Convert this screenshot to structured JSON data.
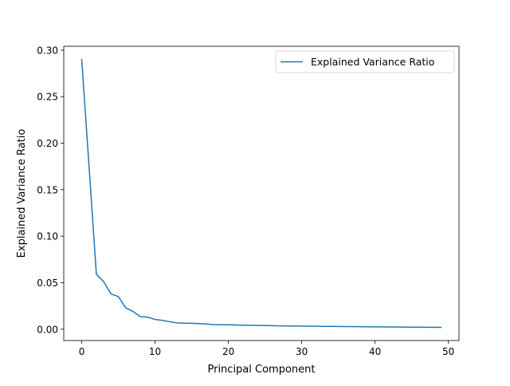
{
  "chart_data": {
    "type": "line",
    "xlabel": "Principal Component",
    "ylabel": "Explained Variance Ratio",
    "xlim": [
      -2.45,
      51.45
    ],
    "ylim": [
      -0.0122,
      0.3042
    ],
    "grid": false,
    "legend_position": "upper right",
    "series_color": "#1f77b4",
    "x_ticks": [
      0,
      10,
      20,
      30,
      40,
      50
    ],
    "x_tick_labels": [
      "0",
      "10",
      "20",
      "30",
      "40",
      "50"
    ],
    "y_ticks": [
      0.0,
      0.05,
      0.1,
      0.15,
      0.2,
      0.25,
      0.3
    ],
    "y_tick_labels": [
      "0.00",
      "0.05",
      "0.10",
      "0.15",
      "0.20",
      "0.25",
      "0.30"
    ],
    "series": [
      {
        "name": "Explained Variance Ratio",
        "x": [
          0,
          1,
          2,
          3,
          4,
          5,
          6,
          7,
          8,
          9,
          10,
          11,
          12,
          13,
          14,
          15,
          16,
          17,
          18,
          19,
          20,
          21,
          22,
          23,
          24,
          25,
          26,
          27,
          28,
          29,
          30,
          31,
          32,
          33,
          34,
          35,
          36,
          37,
          38,
          39,
          40,
          41,
          42,
          43,
          44,
          45,
          46,
          47,
          48,
          49
        ],
        "values": [
          0.29,
          0.175,
          0.059,
          0.051,
          0.038,
          0.035,
          0.023,
          0.019,
          0.0135,
          0.013,
          0.0105,
          0.0095,
          0.008,
          0.0068,
          0.0065,
          0.0063,
          0.006,
          0.0056,
          0.005,
          0.0048,
          0.0047,
          0.0045,
          0.0043,
          0.0042,
          0.0041,
          0.004,
          0.0038,
          0.0036,
          0.0035,
          0.0034,
          0.0033,
          0.0032,
          0.0031,
          0.003,
          0.003,
          0.0029,
          0.0028,
          0.0028,
          0.0027,
          0.0026,
          0.0025,
          0.0025,
          0.0024,
          0.0024,
          0.0023,
          0.0022,
          0.0022,
          0.0021,
          0.0021,
          0.002
        ]
      }
    ]
  }
}
